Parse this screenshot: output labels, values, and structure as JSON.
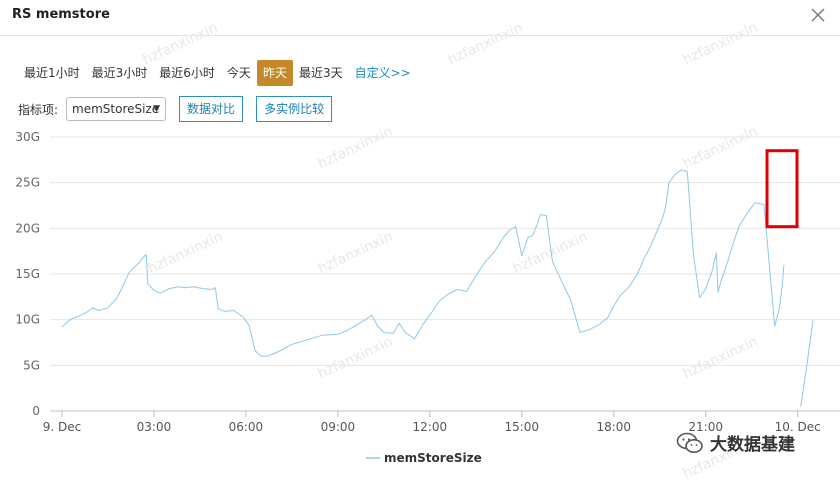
{
  "window": {
    "title": "RS memstore",
    "close_icon": "close-icon"
  },
  "time_range": {
    "options": [
      "最近1小时",
      "最近3小时",
      "最近6小时",
      "今天",
      "昨天",
      "最近3天"
    ],
    "active_index": 4,
    "active_color": "#c5892a",
    "custom_link": "自定义>>"
  },
  "metric": {
    "label": "指标项:",
    "selected": "memStoreSize",
    "buttons": [
      "数据对比",
      "多实例比较"
    ]
  },
  "watermark": "hzfanxinxin",
  "brand": {
    "text": "大数据基建",
    "icon": "wechat-icon"
  },
  "chart_data": {
    "type": "line",
    "ylim": [
      0,
      30
    ],
    "yticks": [
      0,
      5,
      10,
      15,
      20,
      25,
      30
    ],
    "ytick_labels": [
      "0",
      "5G",
      "10G",
      "15G",
      "20G",
      "25G",
      "30G"
    ],
    "xticks": [
      0,
      3,
      6,
      9,
      12,
      15,
      18,
      21,
      24
    ],
    "xtick_labels": [
      "9. Dec",
      "03:00",
      "06:00",
      "09:00",
      "12:00",
      "15:00",
      "18:00",
      "21:00",
      "10. Dec"
    ],
    "xlim": [
      0,
      24.5
    ],
    "grid": true,
    "legend": "bottom-center",
    "series": [
      {
        "name": "memStoreSize",
        "color": "#90c7ec",
        "x": [
          0,
          0.3,
          0.5,
          0.8,
          1.0,
          1.2,
          1.5,
          1.8,
          2.0,
          2.2,
          2.5,
          2.7,
          2.75,
          2.8,
          3.0,
          3.2,
          3.5,
          3.8,
          4.0,
          4.3,
          4.6,
          4.9,
          5.0,
          5.1,
          5.3,
          5.6,
          5.9,
          6.1,
          6.3,
          6.5,
          6.7,
          7.0,
          7.5,
          8.0,
          8.5,
          9.0,
          9.3,
          9.6,
          9.9,
          10.1,
          10.3,
          10.5,
          10.8,
          11.0,
          11.2,
          11.5,
          11.8,
          12.0,
          12.3,
          12.6,
          12.9,
          13.2,
          13.5,
          13.8,
          14.1,
          14.4,
          14.6,
          14.8,
          15.0,
          15.2,
          15.35,
          15.5,
          15.6,
          15.8,
          16.0,
          16.3,
          16.6,
          16.9,
          17.2,
          17.5,
          17.8,
          18.0,
          18.2,
          18.5,
          18.8,
          19.0,
          19.2,
          19.4,
          19.6,
          19.7,
          19.8,
          20.0,
          20.2,
          20.4,
          20.6,
          20.8,
          21.0,
          21.2,
          21.35,
          21.4,
          21.5,
          21.7,
          21.9,
          22.1,
          22.3,
          22.6,
          22.9,
          23.1,
          23.25,
          23.4,
          23.5,
          23.55
        ],
        "y": [
          9.2,
          10.1,
          10.3,
          10.8,
          11.3,
          11.0,
          11.3,
          12.4,
          13.8,
          15.2,
          16.2,
          17.0,
          17.1,
          13.9,
          13.2,
          12.9,
          13.4,
          13.6,
          13.5,
          13.6,
          13.4,
          13.3,
          13.5,
          11.2,
          10.9,
          11.0,
          10.3,
          9.4,
          6.6,
          6.0,
          6.0,
          6.4,
          7.3,
          7.8,
          8.3,
          8.4,
          8.8,
          9.4,
          10.0,
          10.5,
          9.3,
          8.6,
          8.5,
          9.6,
          8.6,
          7.9,
          9.6,
          10.5,
          12.0,
          12.8,
          13.3,
          13.1,
          14.8,
          16.3,
          17.4,
          19.0,
          19.8,
          20.2,
          17.0,
          19.0,
          19.2,
          20.4,
          21.5,
          21.4,
          16.4,
          14.2,
          12.1,
          8.6,
          8.9,
          9.4,
          10.2,
          11.5,
          12.6,
          13.6,
          15.2,
          16.8,
          18.0,
          19.6,
          21.2,
          22.5,
          25.0,
          25.9,
          26.4,
          26.2,
          17.1,
          12.4,
          13.4,
          15.2,
          17.3,
          13.0,
          14.2,
          16.2,
          18.4,
          20.3,
          21.4,
          22.8,
          22.6,
          15.0,
          9.3,
          11.2,
          13.8,
          16.0
        ]
      }
    ]
  }
}
